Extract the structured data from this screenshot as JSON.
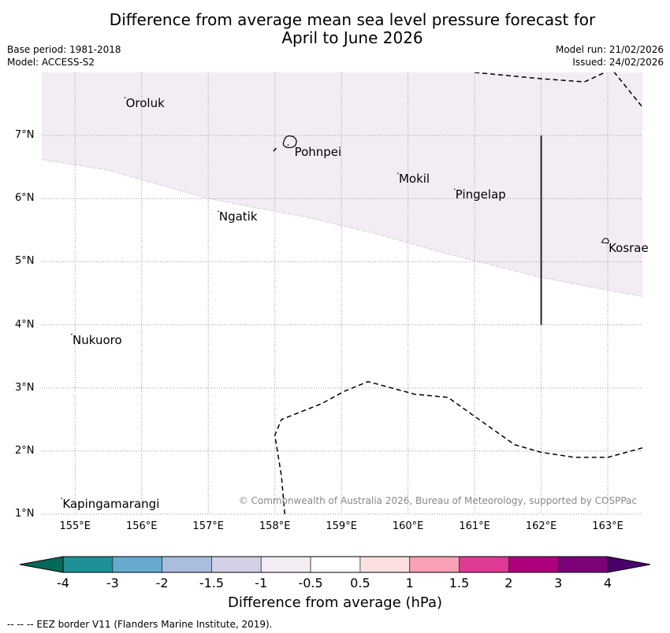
{
  "header": {
    "title_line1": "Difference from average mean sea level pressure forecast for",
    "title_line2": "April to June 2026",
    "base_period": "Base period: 1981-2018",
    "model": "Model: ACCESS-S2",
    "model_run": "Model run: 21/02/2026",
    "issued": "Issued: 24/02/2026"
  },
  "map": {
    "lon_range": [
      154.5,
      163.52
    ],
    "lat_range": [
      1.0,
      8.0
    ],
    "lat_ticks": [
      "1°N",
      "2°N",
      "3°N",
      "4°N",
      "5°N",
      "6°N",
      "7°N"
    ],
    "lon_ticks": [
      "155°E",
      "156°E",
      "157°E",
      "158°E",
      "159°E",
      "160°E",
      "161°E",
      "162°E",
      "163°E"
    ],
    "places": [
      {
        "name": "Oroluk",
        "lon": 155.75,
        "lat": 7.6
      },
      {
        "name": "Pohnpei",
        "lon": 158.2,
        "lat": 6.85
      },
      {
        "name": "Mokil",
        "lon": 159.85,
        "lat": 6.4
      },
      {
        "name": "Pingelap",
        "lon": 160.7,
        "lat": 6.15
      },
      {
        "name": "Ngatik",
        "lon": 157.15,
        "lat": 5.8
      },
      {
        "name": "Kosrae",
        "lon": 163.0,
        "lat": 5.3
      },
      {
        "name": "Nukuoro",
        "lon": 154.95,
        "lat": 3.85
      },
      {
        "name": "Kapingamarangi",
        "lon": 154.8,
        "lat": 1.25
      }
    ],
    "shaded_region": {
      "category": "-1 to -0.5",
      "color": "#f3ecf5",
      "boundary": [
        [
          154.5,
          6.62
        ],
        [
          155.5,
          6.45
        ],
        [
          157.0,
          6.0
        ],
        [
          158.5,
          5.7
        ],
        [
          159.5,
          5.45
        ],
        [
          160.5,
          5.15
        ],
        [
          162.0,
          4.75
        ],
        [
          163.0,
          4.55
        ],
        [
          163.52,
          4.45
        ]
      ]
    },
    "eez_top": [
      [
        161.0,
        8.0
      ],
      [
        162.0,
        7.9
      ],
      [
        162.65,
        7.85
      ],
      [
        163.0,
        8.02
      ],
      [
        163.1,
        8.0
      ],
      [
        163.52,
        7.45
      ]
    ],
    "eez_bottom": [
      [
        158.15,
        1.0
      ],
      [
        158.1,
        1.6
      ],
      [
        158.0,
        2.25
      ],
      [
        158.1,
        2.5
      ],
      [
        158.7,
        2.75
      ],
      [
        159.05,
        2.95
      ],
      [
        159.4,
        3.1
      ],
      [
        160.1,
        2.9
      ],
      [
        160.6,
        2.85
      ],
      [
        161.0,
        2.55
      ],
      [
        161.6,
        2.1
      ],
      [
        162.0,
        1.98
      ],
      [
        162.5,
        1.9
      ],
      [
        163.0,
        1.9
      ],
      [
        163.52,
        2.05
      ]
    ],
    "eez_pohnpei_stub": [
      [
        157.98,
        6.75
      ],
      [
        158.02,
        6.8
      ]
    ],
    "solid_line": {
      "lon": 162.0,
      "lat_from": 4.0,
      "lat_to": 7.0
    },
    "copyright": "© Commonwealth of Australia 2026, Bureau of Meteorology, supported by COSPPac"
  },
  "colorbar": {
    "ticks": [
      "-4",
      "-3",
      "-2",
      "-1.5",
      "-1",
      "-0.5",
      "0.5",
      "1",
      "1.5",
      "2",
      "3",
      "4"
    ],
    "colors": [
      "#1e9097",
      "#67aacf",
      "#a9bedf",
      "#d3d1e6",
      "#f3ecf5",
      "#ffffff",
      "#fedfe0",
      "#f9a0b6",
      "#df3a96",
      "#ae017e",
      "#7b0277"
    ],
    "under_color": "#016b59",
    "over_color": "#49006a",
    "label": "Difference from average (hPa)"
  },
  "footer": {
    "eez_legend": "--  --  -- EEZ border V11 (Flanders Marine Institute, 2019)."
  }
}
